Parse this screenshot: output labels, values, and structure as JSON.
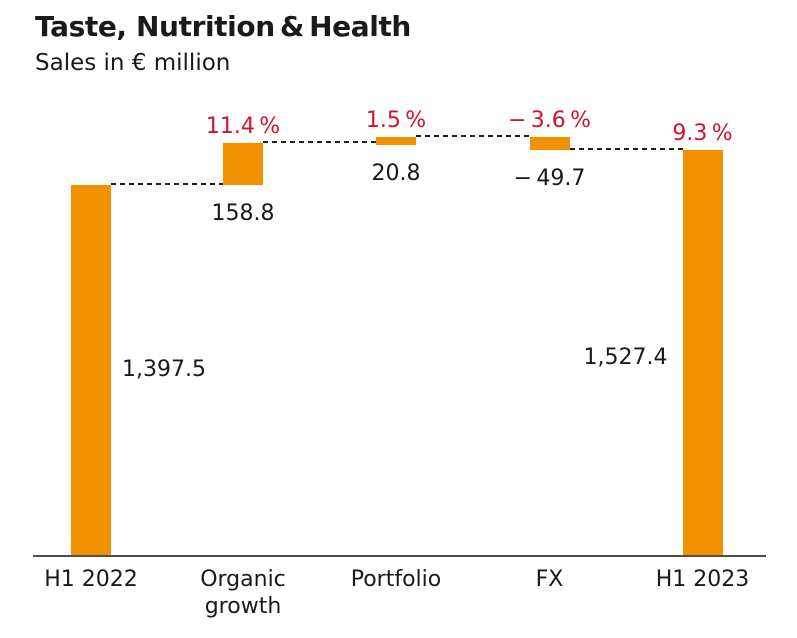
{
  "header": {
    "title": "Taste, Nutrition & Health",
    "subtitle": "Sales in € million"
  },
  "chart_data": {
    "type": "bar",
    "subtype": "waterfall",
    "title": "Taste, Nutrition & Health",
    "unit_label": "Sales in € million",
    "categories": [
      "H1 2022",
      "Organic growth",
      "Portfolio",
      "FX",
      "H1 2023"
    ],
    "values": [
      1397.5,
      158.8,
      20.8,
      -49.7,
      1527.4
    ],
    "segments": [
      {
        "label": "H1 2022",
        "role": "total",
        "value": 1397.5,
        "value_label": "1,397.5",
        "pct_label": ""
      },
      {
        "label": "Organic growth",
        "role": "delta",
        "value": 158.8,
        "value_label": "158.8",
        "pct_label": "11.4 %"
      },
      {
        "label": "Portfolio",
        "role": "delta",
        "value": 20.8,
        "value_label": "20.8",
        "pct_label": "1.5 %"
      },
      {
        "label": "FX",
        "role": "delta",
        "value": -49.7,
        "value_label": "− 49.7",
        "pct_label": "− 3.6 %"
      },
      {
        "label": "H1 2023",
        "role": "total",
        "value": 1527.4,
        "value_label": "1,527.4",
        "pct_label": "9.3 %"
      }
    ],
    "grid": false,
    "legend": "none",
    "colors": {
      "bar": "#F39200",
      "percent_text": "#CD1432",
      "value_text": "#1A1A1A",
      "axis_line": "#4D4D4D",
      "connector": "#1F1F1F",
      "background": "#FFFFFF"
    }
  }
}
